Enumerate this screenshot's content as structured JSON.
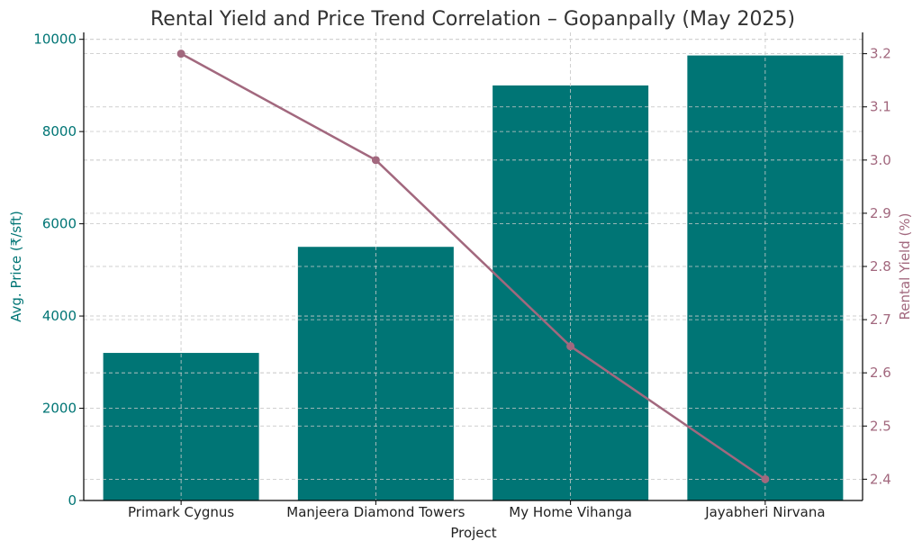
{
  "chart_data": {
    "type": "bar+line",
    "title": "Rental Yield and Price Trend Correlation – Gopanpally (May 2025)",
    "xlabel": "Project",
    "ylabel_left": "Avg. Price (₹/sft)",
    "ylabel_right": "Rental Yield (%)",
    "categories": [
      "Primark Cygnus",
      "Manjeera Diamond Towers",
      "My Home Vihanga",
      "Jayabheri Nirvana"
    ],
    "series": [
      {
        "name": "Avg. Price (₹/sft)",
        "type": "bar",
        "axis": "left",
        "color": "#007575",
        "values": [
          3200,
          5500,
          9000,
          9650
        ]
      },
      {
        "name": "Rental Yield (%)",
        "type": "line",
        "axis": "right",
        "color": "#a2687e",
        "values": [
          3.2,
          3.0,
          2.65,
          2.4
        ]
      }
    ],
    "ylim_left": [
      0,
      10150
    ],
    "yticks_left": [
      "0",
      "2000",
      "4000",
      "6000",
      "8000",
      "10000"
    ],
    "ylim_right": [
      2.36,
      3.24
    ],
    "yticks_right": [
      "2.4",
      "2.5",
      "2.6",
      "2.7",
      "2.8",
      "2.9",
      "3.0",
      "3.1",
      "3.2"
    ],
    "grid": true
  }
}
